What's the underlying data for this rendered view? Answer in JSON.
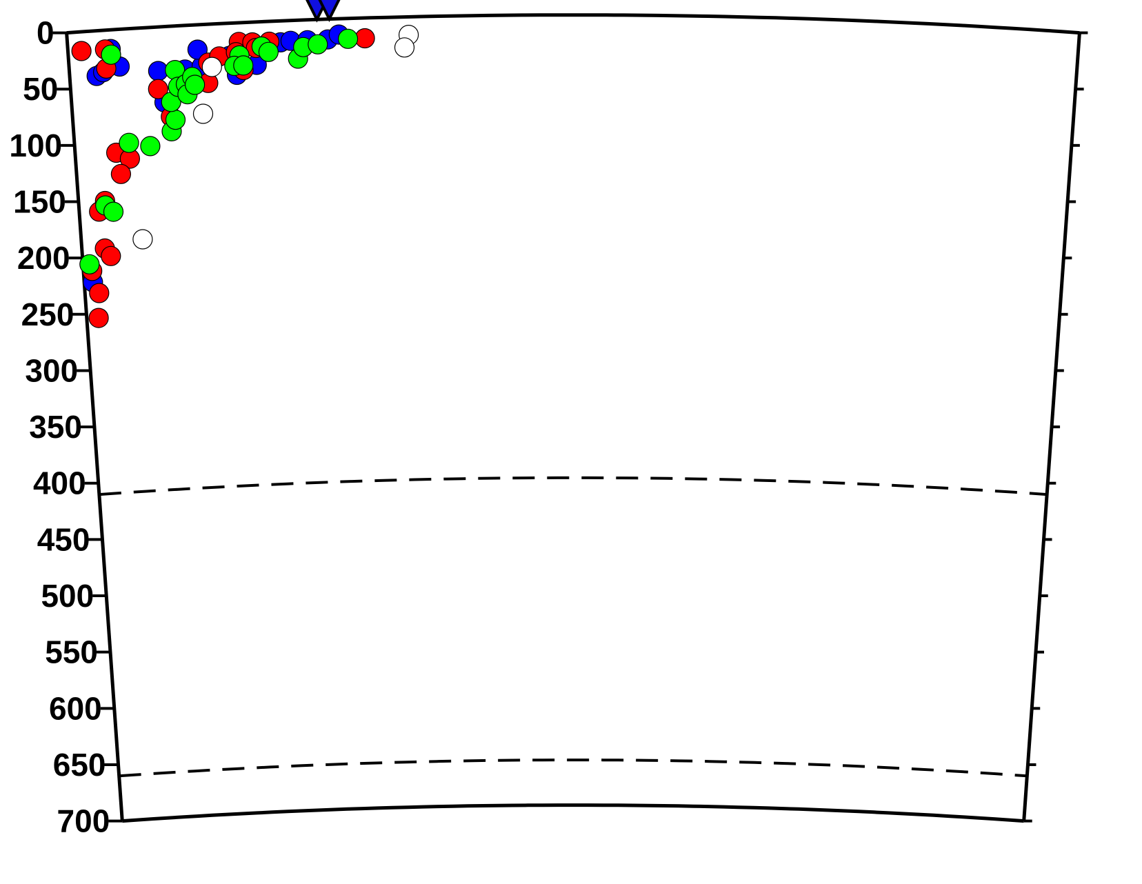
{
  "chart_data": {
    "type": "scatter",
    "title": "",
    "xlabel": "",
    "ylabel": "",
    "projection": "curved cross-section (Earth radius 6371 km)",
    "xlim": [
      0,
      898
    ],
    "ylim": [
      0,
      700
    ],
    "y_inverted": true,
    "grid": false,
    "y_ticks": [
      "0",
      "50",
      "100",
      "150",
      "200",
      "250",
      "300",
      "350",
      "400",
      "450",
      "500",
      "550",
      "600",
      "650",
      "700"
    ],
    "dashed_depths": [
      410,
      660
    ],
    "stations": {
      "color": "#1010e0",
      "shape": "inverted-triangle",
      "x": [
        222,
        233
      ]
    },
    "series": [
      {
        "color": "#0000ff",
        "points": [
          [
            24,
            40
          ],
          [
            30,
            37
          ],
          [
            45,
            33
          ],
          [
            38,
            17
          ],
          [
            79,
            39
          ],
          [
            83,
            67
          ],
          [
            103,
            39
          ],
          [
            118,
            37
          ],
          [
            143,
            29
          ],
          [
            149,
            46
          ],
          [
            167,
            38
          ],
          [
            189,
            19
          ],
          [
            198,
            18
          ],
          [
            213,
            18
          ],
          [
            231,
            18
          ],
          [
            241,
            14
          ],
          [
            8,
            222
          ],
          [
            115,
            22
          ]
        ]
      },
      {
        "color": "#ff0000",
        "points": [
          [
            12,
            17
          ],
          [
            33,
            17
          ],
          [
            33,
            34
          ],
          [
            78,
            55
          ],
          [
            37,
            109
          ],
          [
            49,
            115
          ],
          [
            40,
            128
          ],
          [
            18,
            160
          ],
          [
            24,
            151
          ],
          [
            21,
            193
          ],
          [
            26,
            200
          ],
          [
            8,
            212
          ],
          [
            13,
            232
          ],
          [
            11,
            254
          ],
          [
            88,
            80
          ],
          [
            123,
            52
          ],
          [
            124,
            34
          ],
          [
            134,
            29
          ],
          [
            152,
            17
          ],
          [
            155,
            42
          ],
          [
            164,
            18
          ],
          [
            167,
            23
          ],
          [
            179,
            18
          ],
          [
            264,
            18
          ],
          [
            149,
            26
          ]
        ]
      },
      {
        "color": "#00ff00",
        "points": [
          [
            38,
            22
          ],
          [
            6,
            206
          ],
          [
            24,
            155
          ],
          [
            31,
            161
          ],
          [
            49,
            101
          ],
          [
            68,
            105
          ],
          [
            88,
            93
          ],
          [
            92,
            83
          ],
          [
            89,
            67
          ],
          [
            94,
            39
          ],
          [
            96,
            54
          ],
          [
            103,
            52
          ],
          [
            104,
            61
          ],
          [
            109,
            46
          ],
          [
            111,
            53
          ],
          [
            152,
            29
          ],
          [
            147,
            38
          ],
          [
            155,
            38
          ],
          [
            172,
            22
          ],
          [
            178,
            27
          ],
          [
            204,
            34
          ],
          [
            209,
            24
          ],
          [
            222,
            22
          ],
          [
            249,
            18
          ]
        ]
      },
      {
        "color": "#ffffff",
        "points": [
          [
            303,
            16
          ],
          [
            299,
            27
          ],
          [
            117,
            79
          ],
          [
            56,
            187
          ],
          [
            127,
            38
          ]
        ]
      }
    ]
  }
}
